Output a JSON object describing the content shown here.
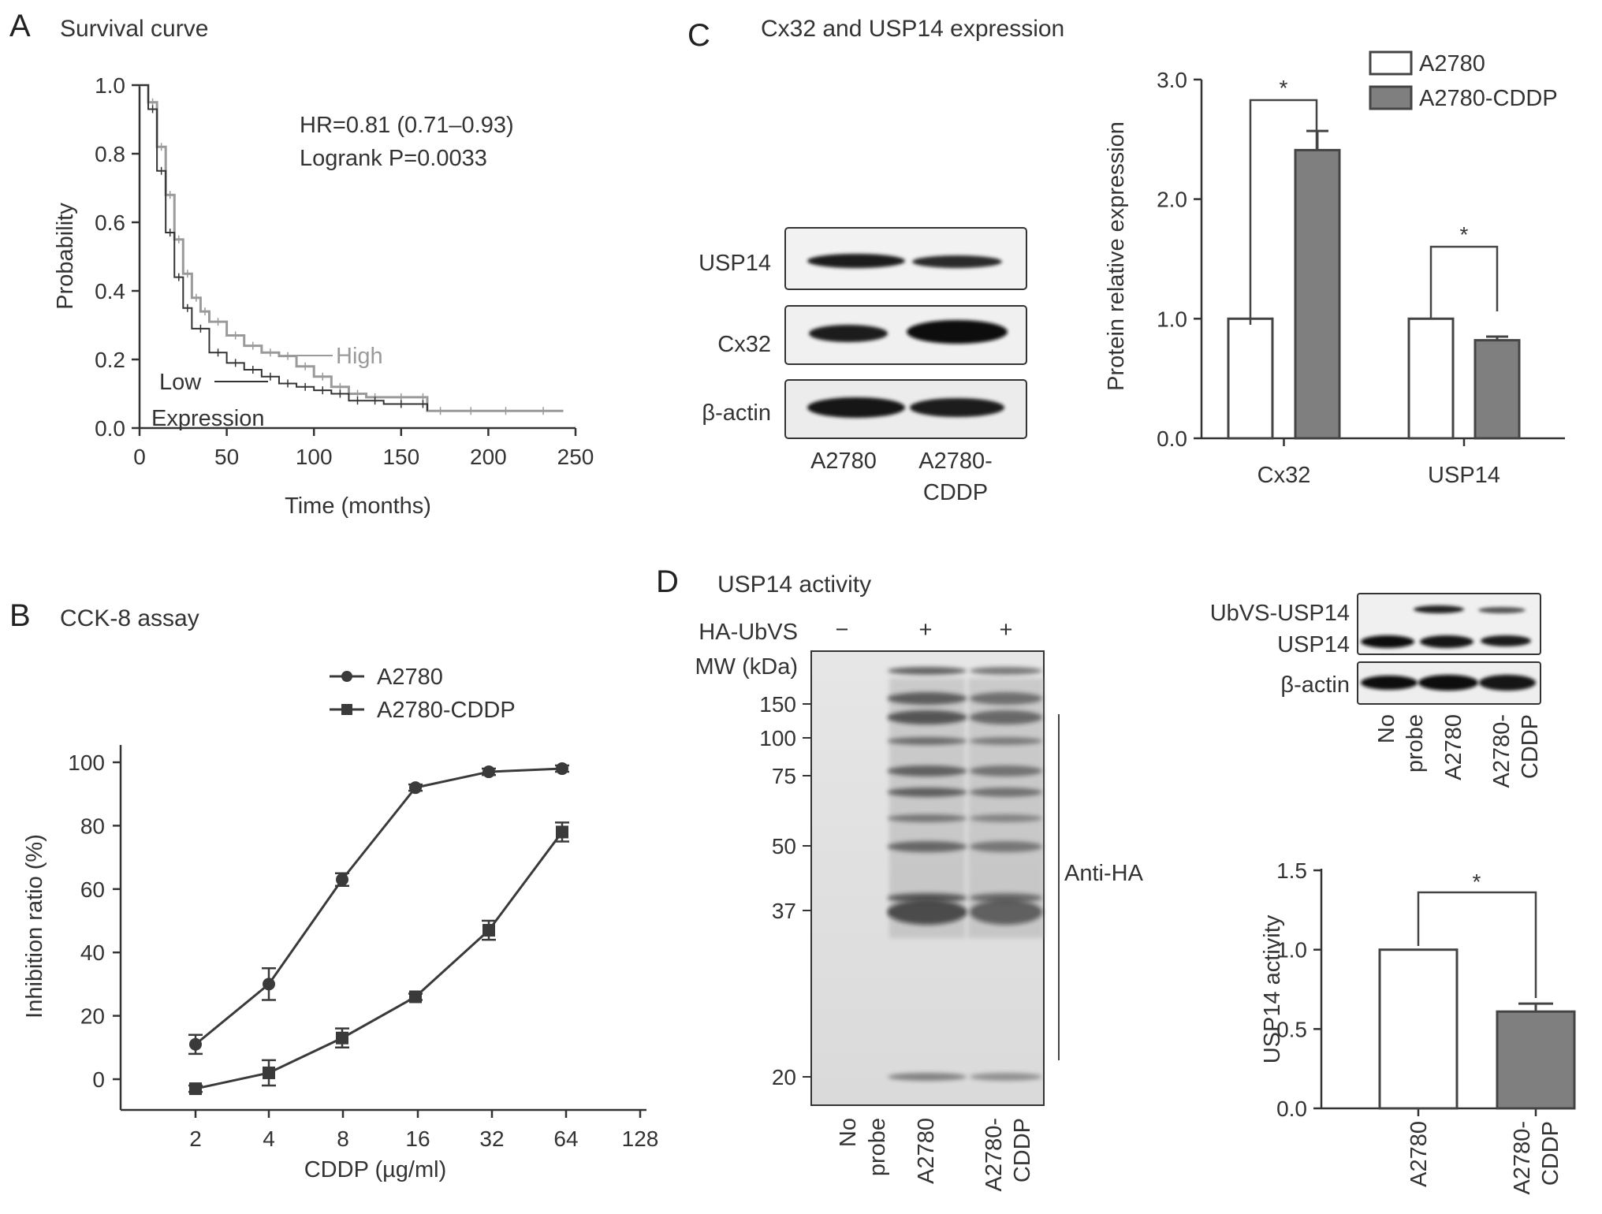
{
  "figure": {
    "panel_letters": [
      "A",
      "B",
      "C",
      "D"
    ],
    "panelA": {
      "title": "Survival curve",
      "hr_text": "HR=0.81 (0.71–0.93)",
      "p_text": "Logrank P=0.0033",
      "label_high": "High",
      "label_low": "Low",
      "label_expression": "Expression",
      "xlabel": "Time (months)",
      "ylabel": "Probability"
    },
    "panelB": {
      "title": "CCK-8 assay",
      "xlabel": "CDDP (µg/ml)",
      "ylabel": "Inhibition ratio (%)"
    },
    "panelC": {
      "title": "Cx32 and USP14 expression",
      "blot_rows": [
        "USP14",
        "Cx32",
        "β-actin"
      ],
      "blot_lanes": [
        "A2780",
        "A2780-",
        "CDDP"
      ],
      "ylabel": "Protein relative expression",
      "sig": "*"
    },
    "panelD": {
      "title": "USP14 activity",
      "ha_ubvs_label": "HA-UbVS",
      "ha_ubvs_signs": [
        "−",
        "+",
        "+"
      ],
      "mw_label": "MW (kDa)",
      "mw_markers": [
        "150",
        "100",
        "75",
        "50",
        "37",
        "20"
      ],
      "lanes": [
        [
          "No",
          "probe"
        ],
        [
          "A2780"
        ],
        [
          "A2780-",
          "CDDP"
        ]
      ],
      "anti_label": "Anti-HA",
      "small_blot_rows": [
        "UbVS-USP14",
        "USP14",
        "β-actin"
      ],
      "small_blot_lanes": [
        [
          "No",
          "probe"
        ],
        [
          "A2780"
        ],
        [
          "A2780-",
          "CDDP"
        ]
      ],
      "ylabel": "USP14 activity",
      "bar_lanes": [
        [
          "A2780"
        ],
        [
          "A2780-",
          "CDDP"
        ]
      ],
      "sig": "*"
    }
  },
  "chart_data": [
    {
      "id": "A",
      "type": "line",
      "title": "Survival curve",
      "xlabel": "Time (months)",
      "ylabel": "Probability",
      "xlim": [
        0,
        250
      ],
      "ylim": [
        0,
        1.0
      ],
      "xticks": [
        "0",
        "50",
        "100",
        "150",
        "200",
        "250"
      ],
      "yticks": [
        "0.0",
        "0.2",
        "0.4",
        "0.6",
        "0.8",
        "1.0"
      ],
      "series": [
        {
          "name": "High",
          "color": "#9a9a9a",
          "x": [
            0,
            5,
            10,
            15,
            20,
            25,
            30,
            35,
            40,
            50,
            60,
            70,
            80,
            90,
            100,
            110,
            120,
            130,
            140,
            160,
            165,
            180,
            200,
            220,
            243
          ],
          "y": [
            1.0,
            0.95,
            0.82,
            0.68,
            0.55,
            0.45,
            0.38,
            0.34,
            0.31,
            0.27,
            0.24,
            0.22,
            0.21,
            0.18,
            0.15,
            0.12,
            0.1,
            0.09,
            0.09,
            0.09,
            0.05,
            0.05,
            0.05,
            0.05,
            0.05
          ]
        },
        {
          "name": "Low",
          "color": "#333333",
          "x": [
            0,
            5,
            10,
            15,
            20,
            25,
            30,
            40,
            50,
            60,
            70,
            80,
            90,
            100,
            110,
            120,
            130,
            140,
            160,
            165
          ],
          "y": [
            1.0,
            0.93,
            0.75,
            0.57,
            0.44,
            0.35,
            0.29,
            0.22,
            0.19,
            0.17,
            0.15,
            0.13,
            0.12,
            0.11,
            0.1,
            0.08,
            0.08,
            0.07,
            0.07,
            0.05
          ]
        }
      ]
    },
    {
      "id": "B",
      "type": "line",
      "title": "CCK-8 assay",
      "xlabel": "CDDP (µg/ml)",
      "ylabel": "Inhibition ratio (%)",
      "x_scale": "log2",
      "categories": [
        "2",
        "4",
        "8",
        "16",
        "32",
        "64",
        "128"
      ],
      "ylim": [
        -10,
        100
      ],
      "yticks": [
        "0",
        "20",
        "40",
        "60",
        "80",
        "100"
      ],
      "legend": "top",
      "series": [
        {
          "name": "A2780",
          "marker": "circle",
          "x": [
            2,
            4,
            8,
            16,
            32,
            64
          ],
          "y": [
            11,
            30,
            63,
            92,
            97,
            98
          ],
          "err": [
            3,
            5,
            2,
            1,
            1,
            1
          ]
        },
        {
          "name": "A2780-CDDP",
          "marker": "square",
          "x": [
            2,
            4,
            8,
            16,
            32,
            64
          ],
          "y": [
            -3,
            2,
            13,
            26,
            47,
            78
          ],
          "err": [
            1,
            4,
            3,
            1,
            3,
            3
          ]
        }
      ]
    },
    {
      "id": "C",
      "type": "bar",
      "categories": [
        "Cx32",
        "USP14"
      ],
      "ylabel": "Protein relative expression",
      "ylim": [
        0,
        3.0
      ],
      "yticks": [
        "0.0",
        "1.0",
        "2.0",
        "3.0"
      ],
      "legend": "top-right",
      "series": [
        {
          "name": "A2780",
          "color": "#ffffff",
          "values": [
            1.0,
            1.0
          ],
          "err": [
            0,
            0
          ]
        },
        {
          "name": "A2780-CDDP",
          "color": "#7f7f7f",
          "values": [
            2.41,
            0.82
          ],
          "err": [
            0.16,
            0.03
          ]
        }
      ],
      "annotations": [
        "*",
        "*"
      ]
    },
    {
      "id": "D",
      "type": "bar",
      "categories": [
        "A2780",
        "A2780-CDDP"
      ],
      "ylabel": "USP14 activity",
      "ylim": [
        0,
        1.5
      ],
      "yticks": [
        "0.0",
        "0.5",
        "1.0",
        "1.5"
      ],
      "series": [
        {
          "values": [
            1.0,
            0.61
          ],
          "err": [
            0,
            0.05
          ],
          "colors": [
            "#ffffff",
            "#7f7f7f"
          ]
        }
      ],
      "annotations": [
        "*"
      ]
    }
  ]
}
